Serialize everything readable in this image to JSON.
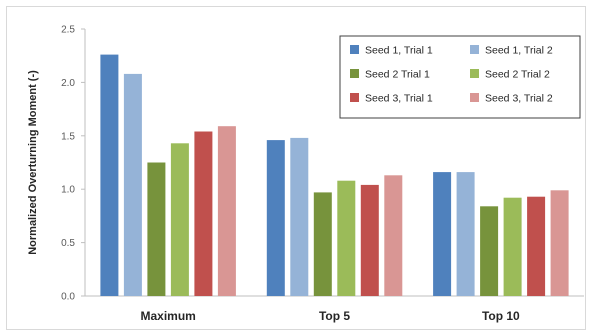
{
  "chart_data": {
    "type": "bar",
    "categories": [
      "Maximum",
      "Top 5",
      "Top 10"
    ],
    "ylabel": "Normalized Overturning Moment (-)",
    "xlabel": "",
    "ylim": [
      0,
      2.5
    ],
    "yticks": [
      "0.0",
      "0.5",
      "1.0",
      "1.5",
      "2.0",
      "2.5"
    ],
    "grid": false,
    "legend_position": "top-right",
    "series": [
      {
        "name": "Seed 1, Trial 1",
        "color": "#4f81bd",
        "values": [
          2.26,
          1.46,
          1.16
        ]
      },
      {
        "name": "Seed 1, Trial 2",
        "color": "#95b3d7",
        "values": [
          2.08,
          1.48,
          1.16
        ]
      },
      {
        "name": "Seed 2 Trial 1",
        "color": "#77933c",
        "values": [
          1.25,
          0.97,
          0.84
        ]
      },
      {
        "name": "Seed 2 Trial 2",
        "color": "#9bbb59",
        "values": [
          1.43,
          1.08,
          0.92
        ]
      },
      {
        "name": "Seed 3, Trial 1",
        "color": "#c0504d",
        "values": [
          1.54,
          1.04,
          0.93
        ]
      },
      {
        "name": "Seed 3, Trial 2",
        "color": "#d99694",
        "values": [
          1.59,
          1.13,
          0.99
        ]
      }
    ]
  }
}
